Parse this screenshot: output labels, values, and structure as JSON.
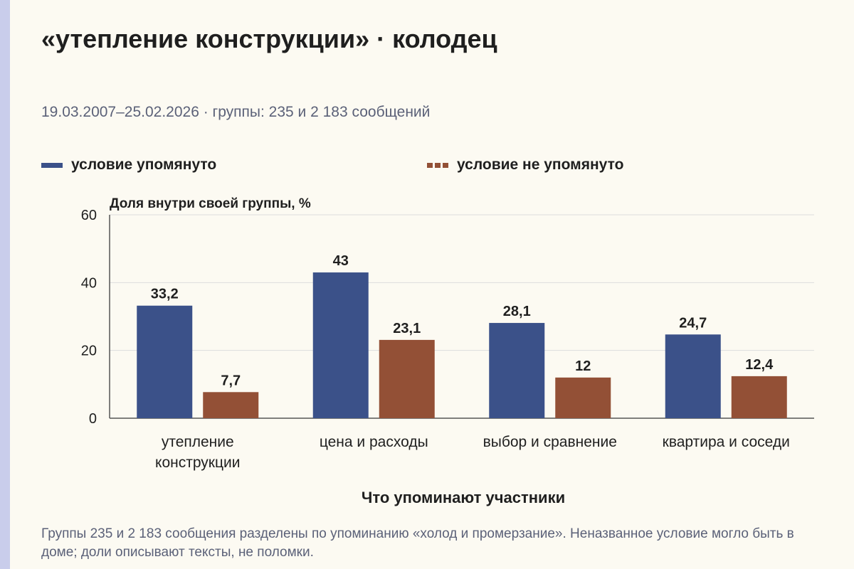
{
  "colors": {
    "series1": "#3b5189",
    "series2": "#935036",
    "grid": "#dcdcdc",
    "axis": "#555555",
    "text": "#1f1f1f",
    "muted": "#5b6178"
  },
  "header": {
    "title": "«утепление конструкции» · колодец",
    "subtitle": "19.03.2007–25.02.2026 · группы: 235 и 2 183 сообщений"
  },
  "legend": {
    "position": "top",
    "items": [
      {
        "label": "условие упомянуто"
      },
      {
        "label": "условие не упомянуто"
      }
    ]
  },
  "chart_data": {
    "type": "bar",
    "ylabel": "Доля внутри своей группы, %",
    "xlabel": "Что упоминают участники",
    "ylim": [
      0,
      60
    ],
    "yticks": [
      0,
      20,
      40,
      60
    ],
    "grid": true,
    "categories": [
      [
        "утепление",
        "конструкции"
      ],
      [
        "цена и расходы"
      ],
      [
        "выбор и сравнение"
      ],
      [
        "квартира и соседи"
      ]
    ],
    "series": [
      {
        "name": "условие упомянуто",
        "values": [
          33.2,
          43,
          28.1,
          24.7
        ],
        "labels": [
          "33,2",
          "43",
          "28,1",
          "24,7"
        ]
      },
      {
        "name": "условие не упомянуто",
        "values": [
          7.7,
          23.1,
          12,
          12.4
        ],
        "labels": [
          "7,7",
          "23,1",
          "12",
          "12,4"
        ]
      }
    ]
  },
  "footnote": "Группы 235 и 2 183 сообщения разделены по упоминанию «холод и промерзание». Неназванное условие могло быть в доме; доли описывают тексты, не поломки."
}
